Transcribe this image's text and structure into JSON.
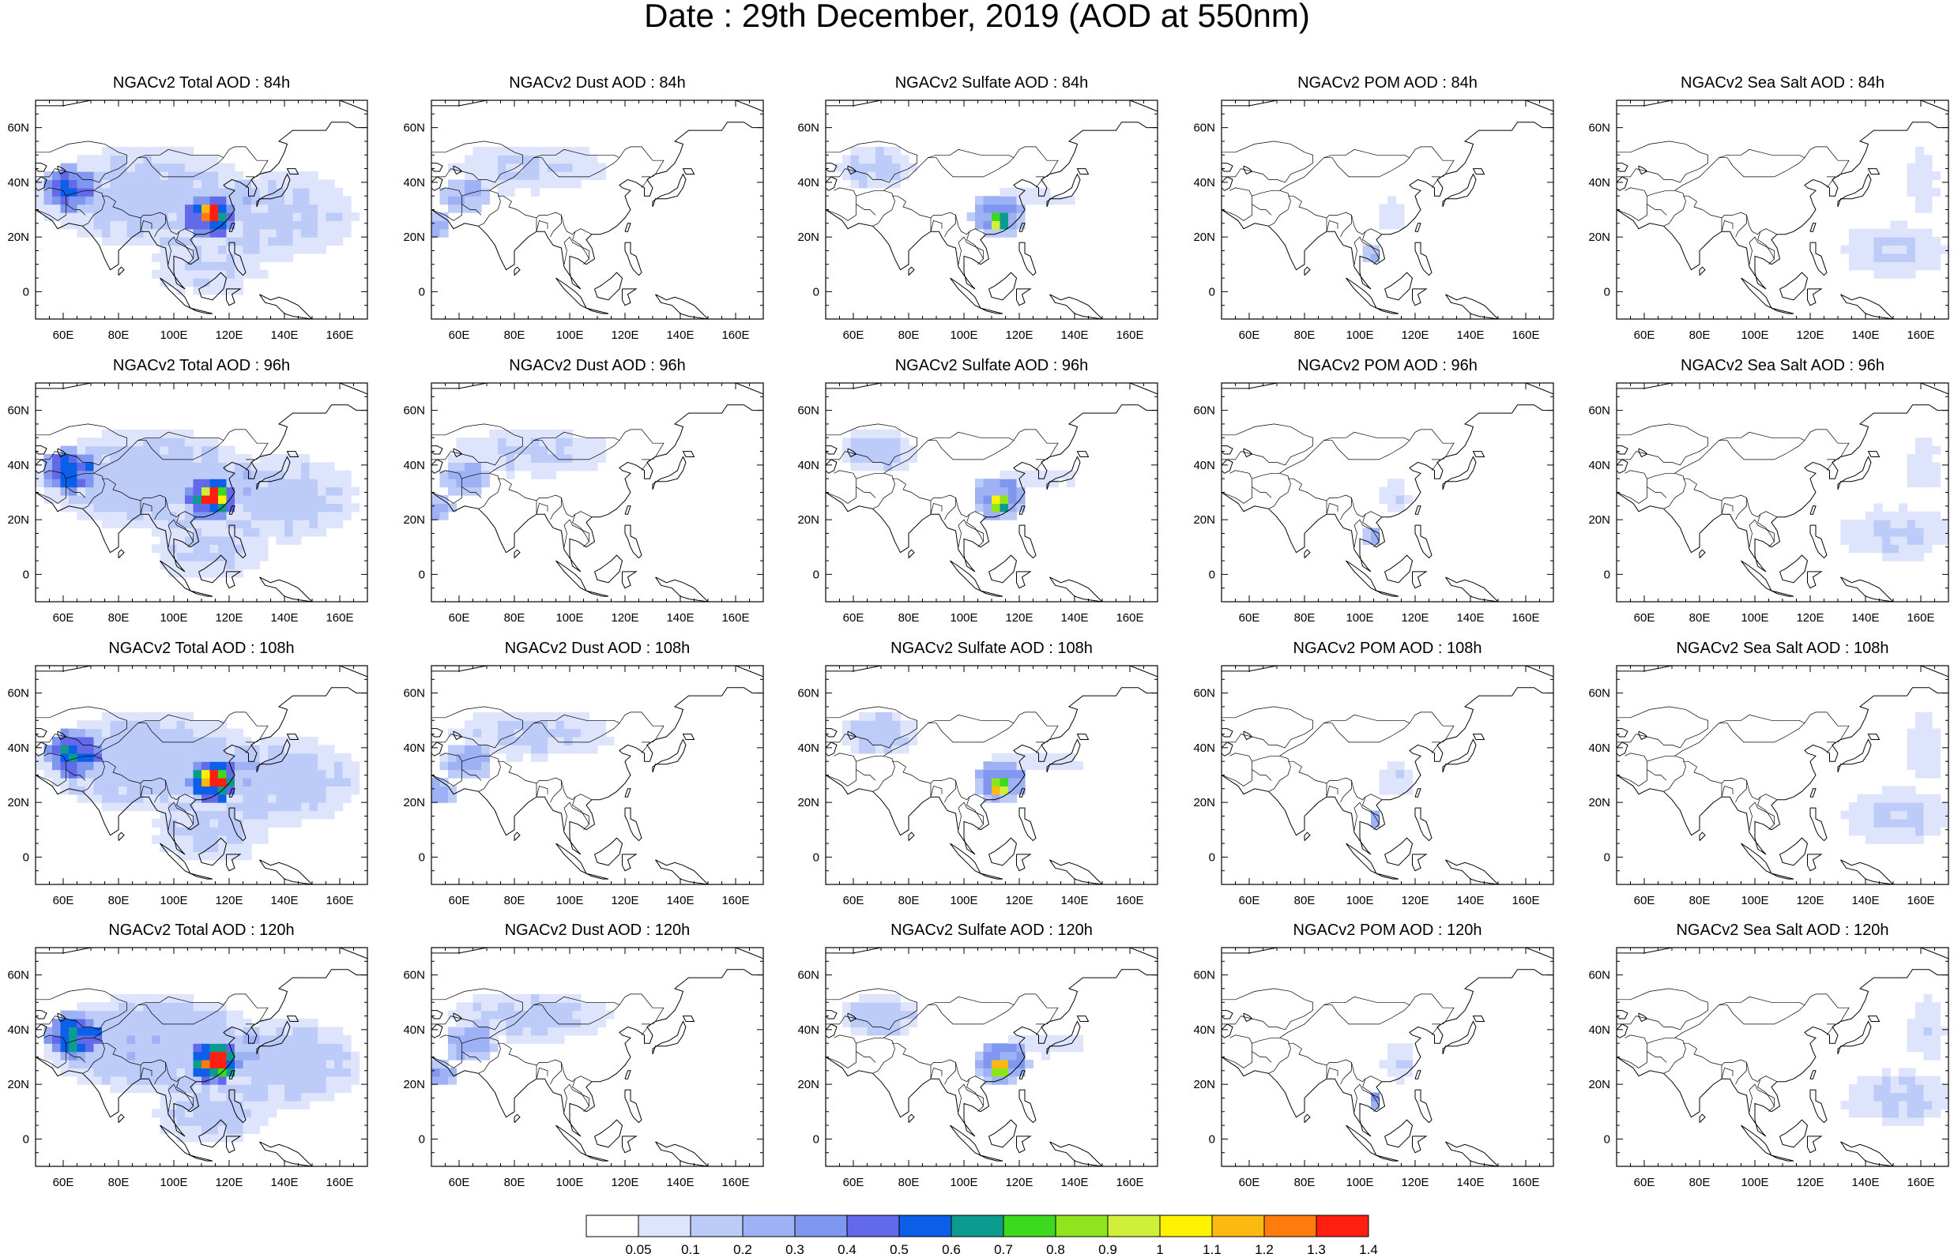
{
  "title": "Date : 29th December, 2019 (AOD at 550nm)",
  "colorbar": {
    "labels": [
      "0.05",
      "0.1",
      "0.2",
      "0.3",
      "0.4",
      "0.5",
      "0.6",
      "0.7",
      "0.8",
      "0.9",
      "1",
      "1.1",
      "1.2",
      "1.3",
      "1.4"
    ],
    "colors": [
      "#ffffff",
      "#dde4fb",
      "#bccbf8",
      "#9db1f4",
      "#8097f0",
      "#636ae9",
      "#0b5fe8",
      "#0b9b8f",
      "#3dd91e",
      "#8ee51e",
      "#cfef39",
      "#fff200",
      "#fcb911",
      "#ff7b0c",
      "#ff1f10"
    ]
  },
  "panels": [
    {
      "title": "NGACv2 Total AOD : 84h"
    },
    {
      "title": "NGACv2 Dust AOD : 84h"
    },
    {
      "title": "NGACv2 Sulfate AOD : 84h"
    },
    {
      "title": "NGACv2 POM AOD : 84h"
    },
    {
      "title": "NGACv2 Sea Salt AOD : 84h"
    },
    {
      "title": "NGACv2 Total AOD : 96h"
    },
    {
      "title": "NGACv2 Dust AOD : 96h"
    },
    {
      "title": "NGACv2 Sulfate AOD : 96h"
    },
    {
      "title": "NGACv2 POM AOD : 96h"
    },
    {
      "title": "NGACv2 Sea Salt AOD : 96h"
    },
    {
      "title": "NGACv2 Total AOD : 108h"
    },
    {
      "title": "NGACv2 Dust AOD : 108h"
    },
    {
      "title": "NGACv2 Sulfate AOD : 108h"
    },
    {
      "title": "NGACv2 POM AOD : 108h"
    },
    {
      "title": "NGACv2 Sea Salt AOD : 108h"
    },
    {
      "title": "NGACv2 Total AOD : 120h"
    },
    {
      "title": "NGACv2 Dust AOD : 120h"
    },
    {
      "title": "NGACv2 Sulfate AOD : 120h"
    },
    {
      "title": "NGACv2 POM AOD : 120h"
    },
    {
      "title": "NGACv2 Sea Salt  AOD : 120h"
    }
  ],
  "axes": {
    "lon_ticks": [
      "60E",
      "80E",
      "100E",
      "120E",
      "140E",
      "160E"
    ],
    "lat_ticks": [
      "60N",
      "40N",
      "20N",
      "0"
    ]
  },
  "chart_data": {
    "type": "heatmap",
    "title": "Date : 29th December, 2019 (AOD at 550nm)",
    "variable": "AOD at 550nm",
    "date": "29th December, 2019",
    "rows_forecast_hours": [
      "84h",
      "96h",
      "108h",
      "120h"
    ],
    "columns_species": [
      "Total",
      "Dust",
      "Sulfate",
      "POM",
      "Sea Salt"
    ],
    "xlim": [
      50,
      170
    ],
    "ylim": [
      -10,
      70
    ],
    "x_ticks": [
      60,
      80,
      100,
      120,
      140,
      160
    ],
    "y_ticks": [
      0,
      20,
      40,
      60
    ],
    "levels": [
      0.05,
      0.1,
      0.2,
      0.3,
      0.4,
      0.5,
      0.6,
      0.7,
      0.8,
      0.9,
      1,
      1.1,
      1.2,
      1.3,
      1.4
    ],
    "blob_fields": {
      "Total": [
        {
          "lon": 90,
          "lat": 35,
          "rx": 40,
          "ry": 18,
          "v": 0.16
        },
        {
          "lon": 140,
          "lat": 28,
          "rx": 26,
          "ry": 16,
          "v": 0.14
        },
        {
          "lon": 112,
          "lat": 10,
          "rx": 22,
          "ry": 12,
          "v": 0.12
        },
        {
          "lon": 62,
          "lat": 38,
          "rx": 10,
          "ry": 8,
          "v": 0.45
        },
        {
          "lon": 113,
          "lat": 28,
          "rx": 9,
          "ry": 8,
          "v": 0.55
        },
        {
          "lon": 113,
          "lat": 28,
          "rx": 4,
          "ry": 3.5,
          "v": 1.0
        }
      ],
      "Dust": [
        {
          "lon": 85,
          "lat": 45,
          "rx": 30,
          "ry": 9,
          "v": 0.12
        },
        {
          "lon": 62,
          "lat": 35,
          "rx": 9,
          "ry": 7,
          "v": 0.25
        },
        {
          "lon": 52,
          "lat": 24,
          "rx": 5,
          "ry": 5,
          "v": 0.3
        }
      ],
      "Sulfate": [
        {
          "lon": 68,
          "lat": 45,
          "rx": 14,
          "ry": 8,
          "v": 0.15
        },
        {
          "lon": 112,
          "lat": 28,
          "rx": 10,
          "ry": 8,
          "v": 0.35
        },
        {
          "lon": 112,
          "lat": 26,
          "rx": 4,
          "ry": 3,
          "v": 0.8
        },
        {
          "lon": 125,
          "lat": 35,
          "rx": 20,
          "ry": 5,
          "v": 0.08
        }
      ],
      "POM": [
        {
          "lon": 112,
          "lat": 28,
          "rx": 6,
          "ry": 7,
          "v": 0.1
        },
        {
          "lon": 104,
          "lat": 14,
          "rx": 3,
          "ry": 3,
          "v": 0.3
        }
      ],
      "Sea Salt": [
        {
          "lon": 150,
          "lat": 15,
          "rx": 20,
          "ry": 10,
          "v": 0.12
        },
        {
          "lon": 160,
          "lat": 40,
          "rx": 8,
          "ry": 14,
          "v": 0.08
        }
      ]
    }
  }
}
